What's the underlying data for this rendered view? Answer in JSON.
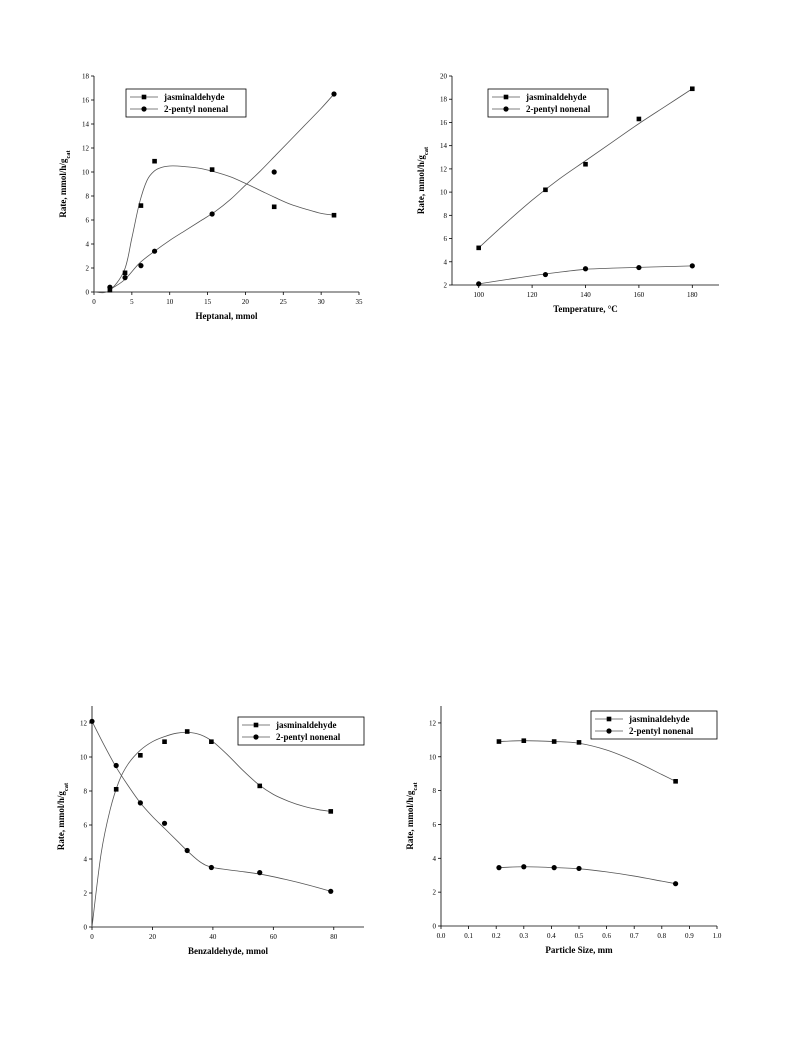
{
  "chart_data": [
    {
      "type": "scatter",
      "xlabel": "Heptanal, mmol",
      "ylabel": "Rate, mmol/h/g",
      "ylabel_sub": "cat",
      "xlim": [
        0,
        35
      ],
      "ylim": [
        0,
        18
      ],
      "xticks": [
        0,
        5,
        10,
        15,
        20,
        25,
        30,
        35
      ],
      "yticks": [
        0,
        2,
        4,
        6,
        8,
        10,
        12,
        14,
        16,
        18
      ],
      "grid": false,
      "legend_position": "top-left",
      "series": [
        {
          "name": "jasminaldehyde",
          "marker": "square",
          "x": [
            2.1,
            4.1,
            6.2,
            8.0,
            15.6,
            23.8,
            31.7
          ],
          "y": [
            0.15,
            1.6,
            7.2,
            10.9,
            10.2,
            7.1,
            6.4
          ],
          "fit_x": [
            0,
            2,
            4,
            5,
            6,
            7,
            8,
            9,
            10,
            11,
            12,
            14,
            16,
            18,
            20,
            22,
            24,
            26,
            28,
            30,
            31.7
          ],
          "fit_y": [
            0,
            0.1,
            1.8,
            4.5,
            7.4,
            9.3,
            10.1,
            10.4,
            10.5,
            10.5,
            10.45,
            10.3,
            10.0,
            9.6,
            9.05,
            8.45,
            7.85,
            7.3,
            6.9,
            6.55,
            6.4
          ]
        },
        {
          "name": "2-pentyl nonenal",
          "marker": "circle",
          "x": [
            2.1,
            4.1,
            6.2,
            8.0,
            15.6,
            23.8,
            31.7
          ],
          "y": [
            0.4,
            1.2,
            2.2,
            3.4,
            6.5,
            10.0,
            16.5
          ],
          "fit_x": [
            2.1,
            4,
            6,
            8,
            10,
            12,
            14,
            16,
            18,
            20,
            22,
            24,
            26,
            28,
            30,
            31.7
          ],
          "fit_y": [
            0.2,
            1.0,
            2.4,
            3.4,
            4.3,
            5.1,
            5.9,
            6.7,
            7.7,
            8.9,
            10.1,
            11.4,
            12.7,
            14.0,
            15.3,
            16.5
          ]
        }
      ]
    },
    {
      "type": "scatter",
      "xlabel": "Temperature, °C",
      "ylabel": "Rate, mmol/h/g",
      "ylabel_sub": "cat",
      "xlim": [
        90,
        190
      ],
      "ylim": [
        2,
        20
      ],
      "xticks": [
        100,
        120,
        140,
        160,
        180
      ],
      "yticks": [
        2,
        4,
        6,
        8,
        10,
        12,
        14,
        16,
        18,
        20
      ],
      "grid": false,
      "legend_position": "top-left",
      "series": [
        {
          "name": "jasminaldehyde",
          "marker": "square",
          "x": [
            100,
            125,
            140,
            160,
            180
          ],
          "y": [
            5.2,
            10.2,
            12.4,
            16.3,
            18.9
          ],
          "fit_x": [
            100,
            110,
            120,
            130,
            140,
            150,
            160,
            170,
            180
          ],
          "fit_y": [
            5.2,
            7.3,
            9.3,
            11.1,
            12.7,
            14.3,
            15.9,
            17.4,
            18.9
          ]
        },
        {
          "name": "2-pentyl nonenal",
          "marker": "circle",
          "x": [
            100,
            125,
            140,
            160,
            180
          ],
          "y": [
            2.1,
            2.9,
            3.4,
            3.5,
            3.65
          ],
          "fit_x": [
            100,
            110,
            120,
            130,
            140,
            150,
            160,
            170,
            180
          ],
          "fit_y": [
            2.1,
            2.45,
            2.8,
            3.1,
            3.35,
            3.45,
            3.52,
            3.58,
            3.65
          ]
        }
      ]
    },
    {
      "type": "scatter",
      "xlabel": "Benzaldehyde, mmol",
      "ylabel": "Rate, mmol/h/g",
      "ylabel_sub": "cat",
      "xlim": [
        0,
        90
      ],
      "ylim": [
        0,
        13
      ],
      "xticks": [
        0,
        20,
        40,
        60,
        80
      ],
      "yticks": [
        0,
        2,
        4,
        6,
        8,
        10,
        12
      ],
      "grid": false,
      "legend_position": "top-right",
      "series": [
        {
          "name": "jasminaldehyde",
          "marker": "square",
          "x": [
            8,
            16,
            24,
            31.5,
            39.5,
            55.5,
            79
          ],
          "y": [
            8.1,
            10.1,
            10.9,
            11.5,
            10.9,
            8.3,
            6.8
          ],
          "fit_x": [
            0,
            3,
            6,
            9,
            12,
            16,
            20,
            24,
            28,
            32,
            36,
            40,
            45,
            50,
            55,
            60,
            65,
            70,
            75,
            79
          ],
          "fit_y": [
            0,
            4.3,
            6.9,
            8.6,
            9.6,
            10.4,
            10.9,
            11.2,
            11.4,
            11.45,
            11.3,
            10.9,
            10.1,
            9.2,
            8.4,
            7.8,
            7.4,
            7.1,
            6.9,
            6.8
          ]
        },
        {
          "name": "2-pentyl nonenal",
          "marker": "circle",
          "x": [
            0,
            8,
            16,
            24,
            31.5,
            39.5,
            55.5,
            79
          ],
          "y": [
            12.1,
            9.5,
            7.3,
            6.1,
            4.5,
            3.5,
            3.2,
            2.1
          ],
          "fit_x": [
            0,
            4,
            8,
            12,
            16,
            20,
            24,
            28,
            32,
            36,
            40,
            48,
            56,
            64,
            72,
            79
          ],
          "fit_y": [
            12.1,
            10.7,
            9.4,
            8.3,
            7.3,
            6.5,
            5.8,
            5.1,
            4.4,
            3.8,
            3.5,
            3.3,
            3.1,
            2.8,
            2.45,
            2.1
          ]
        }
      ]
    },
    {
      "type": "scatter",
      "xlabel": "Particle Size, mm",
      "ylabel": "Rate, mmol/h/g",
      "ylabel_sub": "cat",
      "xlim": [
        0,
        1.0
      ],
      "ylim": [
        0,
        13
      ],
      "xticks": [
        0.0,
        0.1,
        0.2,
        0.3,
        0.4,
        0.5,
        0.6,
        0.7,
        0.8,
        0.9,
        1.0
      ],
      "xtick_labels": [
        "0.0",
        "0.1",
        "0.2",
        "0.3",
        "0.4",
        "0.5",
        "0.6",
        "0.7",
        "0.8",
        "0.9",
        "1.0"
      ],
      "yticks": [
        0,
        2,
        4,
        6,
        8,
        10,
        12
      ],
      "grid": false,
      "legend_position": "top-right",
      "series": [
        {
          "name": "jasminaldehyde",
          "marker": "square",
          "x": [
            0.21,
            0.3,
            0.41,
            0.5,
            0.85
          ],
          "y": [
            10.9,
            10.95,
            10.9,
            10.85,
            8.55
          ],
          "fit_x": [
            0.21,
            0.3,
            0.41,
            0.5,
            0.6,
            0.7,
            0.8,
            0.85
          ],
          "fit_y": [
            10.9,
            10.95,
            10.9,
            10.8,
            10.4,
            9.75,
            8.95,
            8.55
          ]
        },
        {
          "name": "2-pentyl nonenal",
          "marker": "circle",
          "x": [
            0.21,
            0.3,
            0.41,
            0.5,
            0.85
          ],
          "y": [
            3.45,
            3.5,
            3.45,
            3.4,
            2.5
          ],
          "fit_x": [
            0.21,
            0.3,
            0.41,
            0.5,
            0.6,
            0.7,
            0.8,
            0.85
          ],
          "fit_y": [
            3.45,
            3.5,
            3.45,
            3.38,
            3.2,
            2.95,
            2.65,
            2.5
          ]
        }
      ]
    }
  ]
}
